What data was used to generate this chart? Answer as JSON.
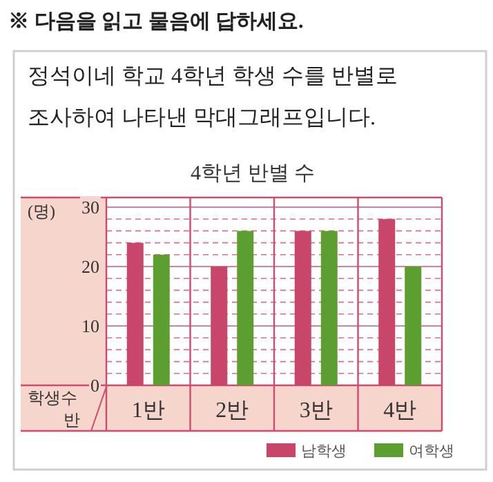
{
  "chart_data": {
    "type": "bar",
    "title": "4학년 반별 수",
    "subtitle": "정석이네 학교 4학년 학생 수를 반별로 조사하여 나타낸 막대그래프입니다.",
    "annotations": [
      "※ 다음을 읽고 물음에 답하세요.",
      "학생수"
    ],
    "xlabel": "반",
    "ylabel": "(명)",
    "categories": [
      "1반",
      "2반",
      "3반",
      "4반"
    ],
    "series": [
      {
        "name": "남학생",
        "color": "#c8466a",
        "values": [
          24,
          20,
          26,
          28
        ]
      },
      {
        "name": "여학생",
        "color": "#5c9e30",
        "values": [
          22,
          26,
          26,
          20
        ]
      }
    ],
    "ylim": [
      0,
      30
    ],
    "yticks": [
      0,
      {
        "value": 2,
        "label": null
      },
      {
        "value": 4,
        "label": null
      },
      {
        "value": 6,
        "label": null
      },
      {
        "value": 8,
        "label": null
      },
      10,
      {
        "value": 12,
        "label": null
      },
      {
        "value": 14,
        "label": null
      },
      {
        "value": 16,
        "label": null
      },
      {
        "value": 18,
        "label": null
      },
      20,
      {
        "value": 22,
        "label": null
      },
      {
        "value": 24,
        "label": null
      },
      {
        "value": 26,
        "label": null
      },
      {
        "value": 28,
        "label": null
      },
      30
    ],
    "grid": "y",
    "legend": "bottom right"
  }
}
